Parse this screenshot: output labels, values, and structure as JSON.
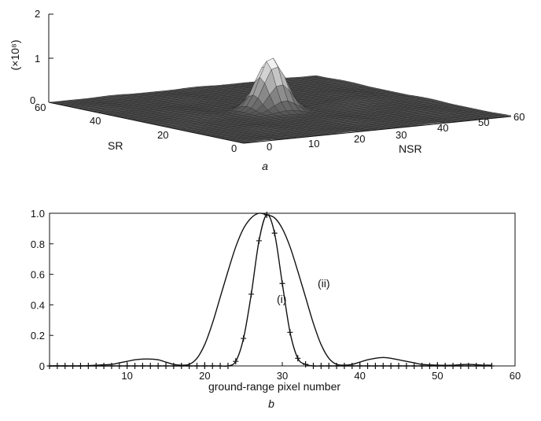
{
  "chart_data": [
    {
      "type": "surface",
      "panel_label": "a",
      "zlabel": "(×10⁸)",
      "z_ticks": [
        "0",
        "1",
        "2"
      ],
      "zlim": [
        0,
        2
      ],
      "y_axis_label": "SR",
      "y_ticks": [
        "60",
        "40",
        "20",
        "0"
      ],
      "x_axis_label": "NSR",
      "x_ticks": [
        "0",
        "10",
        "20",
        "30",
        "40",
        "50",
        "60"
      ],
      "xlim": [
        0,
        60
      ],
      "ylim": [
        0,
        60
      ],
      "peak": {
        "nsr": 28,
        "sr": 30,
        "value": 1.2
      }
    },
    {
      "type": "line",
      "panel_label": "b",
      "xlabel": "ground-range pixel number",
      "xlim": [
        0,
        60
      ],
      "ylim": [
        0,
        1.0
      ],
      "x_ticks": [
        "10",
        "20",
        "30",
        "40",
        "50",
        "60"
      ],
      "y_ticks": [
        "0",
        "0.2",
        "0.4",
        "0.6",
        "0.8",
        "1.0"
      ],
      "grid": false,
      "series": [
        {
          "name": "(i)",
          "marker": "+",
          "x": [
            0,
            1,
            2,
            3,
            4,
            5,
            6,
            7,
            8,
            9,
            10,
            11,
            12,
            13,
            14,
            15,
            16,
            17,
            18,
            19,
            20,
            21,
            22,
            23,
            24,
            25,
            26,
            27,
            28,
            29,
            30,
            31,
            32,
            33,
            34,
            35,
            36,
            37,
            38,
            39,
            40,
            41,
            42,
            43,
            44,
            45,
            46,
            47,
            48,
            49,
            50,
            51,
            52,
            53,
            54,
            55,
            56,
            57
          ],
          "y": [
            0,
            0,
            0,
            0,
            0,
            0,
            0,
            0,
            0,
            0,
            0,
            0,
            0,
            0,
            0,
            0,
            0,
            0,
            0,
            0,
            0,
            0,
            0,
            0,
            0.03,
            0.18,
            0.47,
            0.82,
            0.99,
            0.87,
            0.54,
            0.22,
            0.05,
            0.01,
            0,
            0,
            0,
            0,
            0,
            0,
            0,
            0,
            0,
            0,
            0,
            0,
            0,
            0,
            0,
            0,
            0,
            0,
            0,
            0,
            0,
            0,
            0,
            0
          ]
        },
        {
          "name": "(ii)",
          "marker": "none",
          "x": [
            0,
            2,
            4,
            6,
            8,
            9,
            10,
            11,
            12,
            13,
            14,
            15,
            16,
            17,
            18,
            19,
            20,
            21,
            22,
            23,
            24,
            25,
            26,
            27,
            28,
            29,
            30,
            31,
            32,
            33,
            34,
            35,
            36,
            37,
            38,
            39,
            40,
            41,
            42,
            43,
            44,
            45,
            46,
            47,
            48,
            50,
            52,
            54,
            56,
            57
          ],
          "y": [
            0,
            0,
            0,
            0.005,
            0.01,
            0.02,
            0.03,
            0.04,
            0.045,
            0.045,
            0.04,
            0.025,
            0.01,
            0.005,
            0.01,
            0.05,
            0.14,
            0.28,
            0.45,
            0.62,
            0.78,
            0.9,
            0.97,
            1.0,
            0.99,
            0.97,
            0.9,
            0.78,
            0.62,
            0.45,
            0.28,
            0.14,
            0.05,
            0.01,
            0.005,
            0.01,
            0.025,
            0.04,
            0.05,
            0.055,
            0.05,
            0.04,
            0.03,
            0.02,
            0.01,
            0.005,
            0.005,
            0.01,
            0.005,
            0.005
          ]
        }
      ],
      "annotations": [
        "(i)",
        "(ii)"
      ]
    }
  ]
}
